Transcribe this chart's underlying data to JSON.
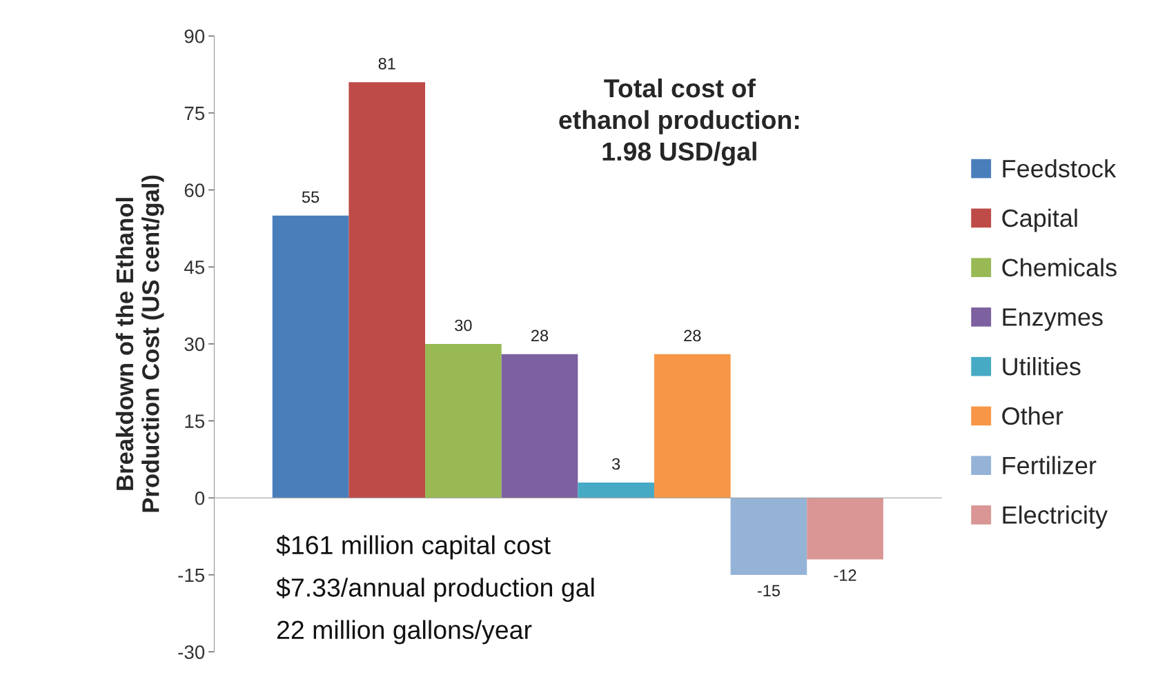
{
  "chart_data": {
    "type": "bar",
    "title": "Total cost of\nethanol production:\n1.98 USD/gal",
    "ylabel": "Breakdown of the Ethanol\nProduction Cost (US cent/gal)",
    "categories": [
      null
    ],
    "series": [
      {
        "name": "Feedstock",
        "color": "#4a7ebb",
        "values": [
          55
        ]
      },
      {
        "name": "Capital",
        "color": "#be4b48",
        "values": [
          81
        ]
      },
      {
        "name": "Chemicals",
        "color": "#98b954",
        "values": [
          30
        ]
      },
      {
        "name": "Enzymes",
        "color": "#7d60a0",
        "values": [
          28
        ]
      },
      {
        "name": "Utilities",
        "color": "#46aac5",
        "values": [
          3
        ]
      },
      {
        "name": "Other",
        "color": "#f79646",
        "values": [
          28
        ]
      },
      {
        "name": "Fertilizer",
        "color": "#95b3d7",
        "values": [
          -15
        ]
      },
      {
        "name": "Electricity",
        "color": "#d99694",
        "values": [
          -12
        ]
      }
    ],
    "ylim": [
      -30,
      90
    ],
    "yticks": [
      -30,
      -15,
      0,
      15,
      30,
      45,
      60,
      75,
      90
    ],
    "data_labels": true,
    "legend": "right",
    "annotations": [
      "$161 million capital cost",
      "$7.33/annual production gal",
      "22 million gallons/year"
    ]
  }
}
